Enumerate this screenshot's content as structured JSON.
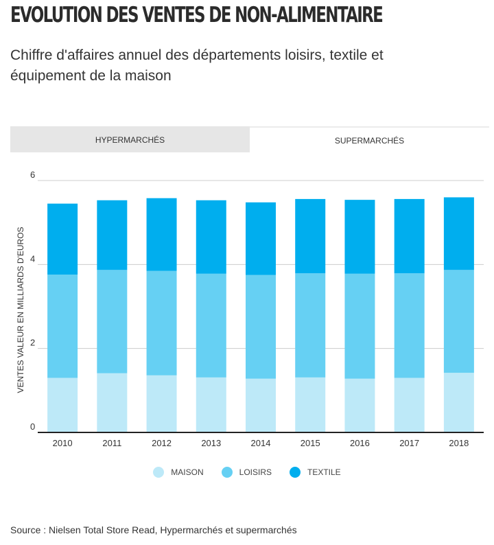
{
  "title": "EVOLUTION DES VENTES DE NON-ALIMENTAIRE",
  "subtitle": "Chiffre d'affaires annuel des départements loisirs, textile et équipement de la maison",
  "tabs": [
    {
      "label": "HYPERMARCHÉS",
      "active": false
    },
    {
      "label": "SUPERMARCHÉS",
      "active": true
    }
  ],
  "source": "Source : Nielsen Total Store Read, Hypermarchés et supermarchés",
  "colors": {
    "maison": "#bde9f8",
    "loisirs": "#66d0f3",
    "textile": "#00aeee",
    "grid": "#cccccc",
    "axis": "#222222"
  },
  "chart_data": {
    "type": "bar",
    "stacked": true,
    "title": "",
    "xlabel": "",
    "ylabel": "VENTES VALEUR EN MILLIARDS D'EUROS",
    "ylim": [
      0,
      6
    ],
    "yticks": [
      0,
      2,
      4,
      6
    ],
    "grid": true,
    "legend_position": "bottom",
    "categories": [
      "2010",
      "2011",
      "2012",
      "2013",
      "2014",
      "2015",
      "2016",
      "2017",
      "2018"
    ],
    "series": [
      {
        "name": "MAISON",
        "values": [
          1.3,
          1.41,
          1.36,
          1.31,
          1.28,
          1.31,
          1.28,
          1.3,
          1.42
        ]
      },
      {
        "name": "LOISIRS",
        "values": [
          2.46,
          2.46,
          2.49,
          2.47,
          2.47,
          2.48,
          2.5,
          2.49,
          2.45
        ]
      },
      {
        "name": "TEXTILE",
        "values": [
          1.69,
          1.66,
          1.73,
          1.75,
          1.73,
          1.77,
          1.76,
          1.77,
          1.73
        ]
      }
    ]
  }
}
